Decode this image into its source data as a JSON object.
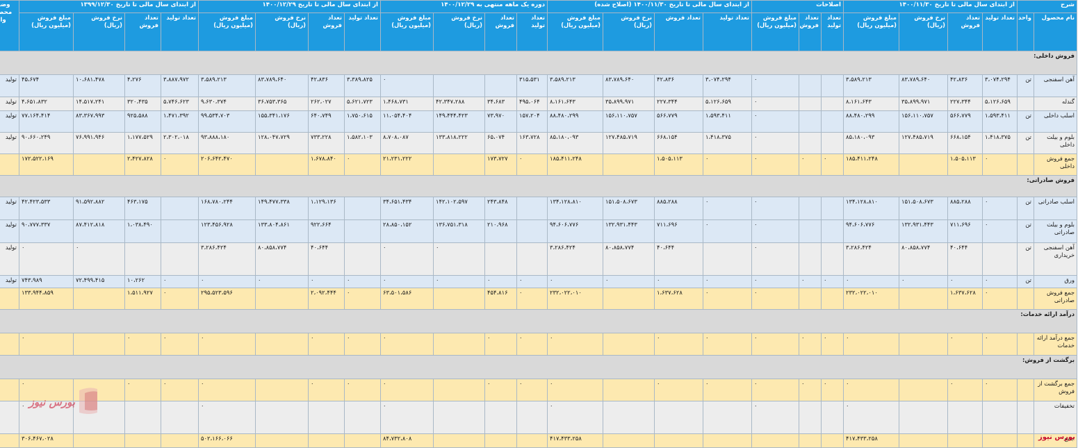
{
  "header": {
    "group_titles": [
      "شرح",
      "از ابتدای سال مالی تا تاریخ ۱۴۰۰/۱۱/۳۰",
      "اصلاحات",
      "از ابتدای سال مالی تا تاریخ ۱۴۰۰/۱۱/۳۰ (اصلاح شده)",
      "دوره یک ماهه منتهی به ۱۴۰۰/۱۲/۲۹",
      "از ابتدای سال مالی تا تاریخ ۱۴۰۰/۱۲/۲۹",
      "از ابتدای سال مالی تا تاریخ ۱۳۹۹/۱۲/۳۰",
      "وضعیت محصول-واحد"
    ],
    "desc_cols": [
      "نام محصول",
      "واحد"
    ],
    "cols4": [
      "تعداد تولید",
      "تعداد فروش",
      "نرخ فروش (ریال)",
      "مبلغ فروش (میلیون ریال)"
    ],
    "adj_cols": [
      "تعداد تولید",
      "تعداد فروش",
      "مبلغ فروش (میلیون ریال)"
    ]
  },
  "rows": [
    {
      "type": "sec",
      "label": "فروش داخلی:"
    },
    {
      "type": "blue",
      "label": "آهن اسفنجی",
      "unit": "تن",
      "g1": [
        "۳،۰۷۴،۲۹۴",
        "۴۲،۸۳۶",
        "۸۳،۷۸۹،۶۴۰",
        "۳،۵۸۹،۲۱۳"
      ],
      "adj": [
        "",
        "",
        "۰"
      ],
      "g2": [
        "۳،۰۷۴،۲۹۴",
        "۴۲،۸۳۶",
        "۸۳،۷۸۹،۶۴۰",
        "۳،۵۸۹،۲۱۳"
      ],
      "g3": [
        "۳۱۵،۵۳۱",
        "",
        "",
        "۰"
      ],
      "g4": [
        "۳،۳۸۹،۸۲۵",
        "۴۲،۸۳۶",
        "۸۳،۷۸۹،۶۴۰",
        "۳،۵۸۹،۲۱۳"
      ],
      "g5": [
        "۳،۸۸۷،۹۷۲",
        "۴،۲۷۶",
        "۱۰،۶۸۱،۴۷۸",
        "۴۵،۶۷۴"
      ],
      "status": "تولید"
    },
    {
      "type": "grey",
      "label": "گندله",
      "unit": "",
      "g1": [
        "۵،۱۲۶،۶۵۹",
        "۲۲۷،۳۴۴",
        "۳۵،۸۹۹،۹۷۱",
        "۸،۱۶۱،۶۴۳"
      ],
      "adj": [
        "",
        "",
        "۰"
      ],
      "g2": [
        "۵،۱۲۶،۶۵۹",
        "۲۲۷،۳۴۴",
        "۳۵،۸۹۹،۹۷۱",
        "۸،۱۶۱،۶۴۳"
      ],
      "g3": [
        "۴۹۵،۰۶۴",
        "۳۴،۶۸۳",
        "۴۲،۳۴۷،۲۸۸",
        "۱،۴۶۸،۷۳۱"
      ],
      "g4": [
        "۵،۶۲۱،۷۲۳",
        "۲۶۲،۰۲۷",
        "۳۶،۷۵۳،۳۶۵",
        "۹،۶۳۰،۳۷۴"
      ],
      "g5": [
        "۵،۷۴۶،۶۲۳",
        "۳۲۰،۴۳۵",
        "۱۴،۵۱۷،۲۴۱",
        "۴،۶۵۱،۸۳۲"
      ],
      "status": "تولید"
    },
    {
      "type": "blue",
      "label": "اسلب داخلی",
      "unit": "تن",
      "g1": [
        "۱،۵۹۳،۴۱۱",
        "۵۶۶،۷۷۹",
        "۱۵۶،۱۱۰،۷۵۷",
        "۸۸،۴۸۰،۲۹۹"
      ],
      "adj": [
        "",
        "",
        "۰"
      ],
      "g2": [
        "۱،۵۹۳،۴۱۱",
        "۵۶۶،۷۷۹",
        "۱۵۶،۱۱۰،۷۵۷",
        "۸۸،۴۸۰،۲۹۹"
      ],
      "g3": [
        "۱۵۷،۲۰۴",
        "۷۳،۹۷۰",
        "۱۴۹،۴۴۴،۴۲۳",
        "۱۱،۰۵۴،۴۰۴"
      ],
      "g4": [
        "۱،۷۵۰،۶۱۵",
        "۶۴۰،۷۴۹",
        "۱۵۵،۳۴۱،۱۷۶",
        "۹۹،۵۳۴،۷۰۳"
      ],
      "g5": [
        "۱،۴۷۱،۳۹۲",
        "۹۲۵،۵۸۸",
        "۸۳،۳۶۷،۹۹۳",
        "۷۷،۱۶۴،۴۱۴"
      ],
      "status": "تولید"
    },
    {
      "type": "grey",
      "label": "بلوم و بیلت داخلی",
      "unit": "تن",
      "g1": [
        "۱،۴۱۸،۳۷۵",
        "۶۶۸،۱۵۴",
        "۱۲۷،۴۸۵،۷۱۹",
        "۸۵،۱۸۰،۰۹۳"
      ],
      "adj": [
        "",
        "",
        "۰"
      ],
      "g2": [
        "۱،۴۱۸،۳۷۵",
        "۶۶۸،۱۵۴",
        "۱۲۷،۴۸۵،۷۱۹",
        "۸۵،۱۸۰،۰۹۳"
      ],
      "g3": [
        "۱۶۳،۷۲۸",
        "۶۵،۰۷۴",
        "۱۳۳،۸۱۸،۲۲۲",
        "۸،۷۰۸،۰۸۷"
      ],
      "g4": [
        "۱،۵۸۲،۱۰۳",
        "۷۳۳،۲۲۸",
        "۱۲۸،۰۴۷،۷۲۹",
        "۹۳،۸۸۸،۱۸۰"
      ],
      "g5": [
        "۲،۳۰۲،۰۱۸",
        "۱،۱۷۷،۵۲۹",
        "۷۶،۹۹۱،۹۴۶",
        "۹۰،۶۶۰،۲۴۹"
      ],
      "status": "تولید"
    },
    {
      "type": "sum",
      "label": "جمع فروش داخلی",
      "unit": "",
      "g1": [
        "۰",
        "۱،۵۰۵،۱۱۳",
        "",
        "۱۸۵،۴۱۱،۲۴۸"
      ],
      "adj": [
        "۰",
        "۰",
        "۰"
      ],
      "g2": [
        "۰",
        "۱،۵۰۵،۱۱۳",
        "",
        "۱۸۵،۴۱۱،۲۴۸"
      ],
      "g3": [
        "۰",
        "۱۷۳،۷۲۷",
        "",
        "۲۱،۲۳۱،۲۲۲"
      ],
      "g4": [
        "۰",
        "۱،۶۷۸،۸۴۰",
        "",
        "۲۰۶،۶۴۲،۴۷۰"
      ],
      "g5": [
        "۰",
        "۲،۴۲۷،۸۲۸",
        "",
        "۱۷۲،۵۲۲،۱۶۹"
      ],
      "status": ""
    },
    {
      "type": "sec",
      "label": "فروش صادراتی:"
    },
    {
      "type": "blue",
      "label": "اسلب صادراتی",
      "unit": "تن",
      "g1": [
        "۰",
        "۸۸۵،۲۸۸",
        "۱۵۱،۵۰۸،۶۷۳",
        "۱۳۴،۱۲۸،۸۱۰"
      ],
      "adj": [
        "",
        "",
        "۰"
      ],
      "g2": [
        "۰",
        "۸۸۵،۲۸۸",
        "۱۵۱،۵۰۸،۶۷۳",
        "۱۳۴،۱۲۸،۸۱۰"
      ],
      "g3": [
        "",
        "۲۴۳،۸۴۸",
        "۱۴۲،۱۰۲،۵۹۷",
        "۳۴،۶۵۱،۴۳۴"
      ],
      "g4": [
        "",
        "۱،۱۲۹،۱۳۶",
        "۱۴۹،۴۷۷،۳۳۸",
        "۱۶۸،۷۸۰،۲۴۴"
      ],
      "g5": [
        "",
        "۴۶۳،۱۷۵",
        "۹۱،۵۹۲،۸۸۲",
        "۴۲،۴۲۳،۵۳۳"
      ],
      "status": "تولید"
    },
    {
      "type": "blue",
      "label": "بلوم و بیلت صادراتی",
      "unit": "تن",
      "g1": [
        "۰",
        "۷۱۱،۶۹۶",
        "۱۳۲،۹۳۱،۴۴۳",
        "۹۴،۶۰۶،۷۷۶"
      ],
      "adj": [
        "",
        "",
        "۰"
      ],
      "g2": [
        "۰",
        "۷۱۱،۶۹۶",
        "۱۳۲،۹۳۱،۴۴۳",
        "۹۴،۶۰۶،۷۷۶"
      ],
      "g3": [
        "",
        "۲۱۰،۹۶۸",
        "۱۳۶،۷۵۱،۳۱۸",
        "۲۸،۸۵۰،۱۵۲"
      ],
      "g4": [
        "",
        "۹۲۲،۶۶۴",
        "۱۳۳،۸۰۴،۸۶۱",
        "۱۲۳،۴۵۶،۹۲۸"
      ],
      "g5": [
        "",
        "۱،۰۳۸،۴۹۰",
        "۸۷،۴۱۲،۸۱۸",
        "۹۰،۷۷۷،۳۳۷"
      ],
      "status": "تولید"
    },
    {
      "type": "grey",
      "label": "آهن اسفنجی خریداری",
      "unit": "تن",
      "g1": [
        "",
        "۴۰،۶۴۴",
        "۸۰،۸۵۸،۷۷۴",
        "۳،۲۸۶،۴۲۴"
      ],
      "adj": [
        "",
        "",
        "۰"
      ],
      "g2": [
        "",
        "۴۰،۶۴۴",
        "۸۰،۸۵۸،۷۷۴",
        "۳،۲۸۶،۴۲۴"
      ],
      "g3": [
        "",
        "",
        "۰",
        "۰"
      ],
      "g4": [
        "",
        "۴۰،۶۴۴",
        "۸۰،۸۵۸،۷۷۴",
        "۳،۲۸۶،۴۲۴"
      ],
      "g5": [
        "",
        "",
        "۰",
        "۰"
      ],
      "status": "تولید"
    },
    {
      "type": "blue",
      "label": "ورق",
      "unit": "تن",
      "g1": [
        "۰",
        "۰",
        "۰",
        "۰"
      ],
      "adj": [
        "۰",
        "۰",
        "۰"
      ],
      "g2": [
        "۰",
        "۰",
        "۰",
        "۰"
      ],
      "g3": [
        "۰",
        "۰",
        "۰",
        "۰"
      ],
      "g4": [
        "۰",
        "۰",
        "۰",
        "۰"
      ],
      "g5": [
        "۰",
        "۱۰،۲۶۲",
        "۷۲،۴۹۹،۴۱۵",
        "۷۴۳،۹۸۹"
      ],
      "status": "تولید"
    },
    {
      "type": "sum",
      "label": "جمع فروش صادراتی",
      "unit": "",
      "g1": [
        "۰",
        "۱،۶۳۷،۶۲۸",
        "",
        "۲۳۲،۰۲۲،۰۱۰"
      ],
      "adj": [
        "",
        "",
        "۰"
      ],
      "g2": [
        "۰",
        "۱،۶۳۷،۶۲۸",
        "",
        "۲۳۲،۰۲۲،۰۱۰"
      ],
      "g3": [
        "۰",
        "۴۵۴،۸۱۶",
        "",
        "۶۳،۵۰۱،۵۸۶"
      ],
      "g4": [
        "۰",
        "۲،۰۹۲،۴۴۴",
        "",
        "۲۹۵،۵۲۳،۵۹۶"
      ],
      "g5": [
        "۰",
        "۱،۵۱۱،۹۲۷",
        "",
        "۱۳۳،۹۴۴،۸۵۹"
      ],
      "status": ""
    },
    {
      "type": "sec",
      "label": "درآمد ارائه خدمات:"
    },
    {
      "type": "sum",
      "label": "جمع درآمد ارائه خدمات",
      "unit": "",
      "g1": [
        "۰",
        "۰",
        "",
        "۰"
      ],
      "adj": [
        "۰",
        "۰",
        "۰"
      ],
      "g2": [
        "۰",
        "۰",
        "",
        "۰"
      ],
      "g3": [
        "۰",
        "۰",
        "",
        "۰"
      ],
      "g4": [
        "۰",
        "۰",
        "",
        "۰"
      ],
      "g5": [
        "۰",
        "۰",
        "",
        "۰"
      ],
      "status": ""
    },
    {
      "type": "sec",
      "label": "برگشت از فروش:"
    },
    {
      "type": "sum",
      "label": "جمع برگشت از فروش",
      "unit": "",
      "g1": [
        "۰",
        "۰",
        "",
        "۰"
      ],
      "adj": [
        "۰",
        "۰",
        "۰"
      ],
      "g2": [
        "۰",
        "۰",
        "",
        "۰"
      ],
      "g3": [
        "۰",
        "۰",
        "",
        "۰"
      ],
      "g4": [
        "۰",
        "۰",
        "",
        "۰"
      ],
      "g5": [
        "۰",
        "۰",
        "",
        "۰"
      ],
      "status": ""
    },
    {
      "type": "grey",
      "label": "تخفیفات",
      "unit": "",
      "g1": [
        "",
        "",
        "",
        "۰"
      ],
      "adj": [
        "",
        "",
        "۰"
      ],
      "g2": [
        "",
        "",
        "",
        "۰"
      ],
      "g3": [
        "",
        "",
        "",
        "۰"
      ],
      "g4": [
        "",
        "",
        "",
        "۰"
      ],
      "g5": [
        "",
        "",
        "",
        "۰"
      ],
      "status": ""
    },
    {
      "type": "sum",
      "label": "جمع",
      "unit": "",
      "g1": [
        "",
        "",
        "",
        "۴۱۷،۴۳۳،۲۵۸"
      ],
      "adj": [
        "",
        "",
        ""
      ],
      "g2": [
        "",
        "",
        "",
        "۴۱۷،۴۳۳،۲۵۸"
      ],
      "g3": [
        "",
        "",
        "",
        "۸۴،۷۳۲،۸۰۸"
      ],
      "g4": [
        "",
        "",
        "",
        "۵۰۲،۱۶۶،۰۶۶"
      ],
      "g5": [
        "",
        "",
        "",
        "۳۰۶،۴۶۷،۰۲۸"
      ],
      "status": ""
    }
  ],
  "brand": {
    "footer_text": "بورس نیوز",
    "logo_text": "بورس نیوز",
    "accent": "#c8102e",
    "header_color": "#1e9be0"
  }
}
